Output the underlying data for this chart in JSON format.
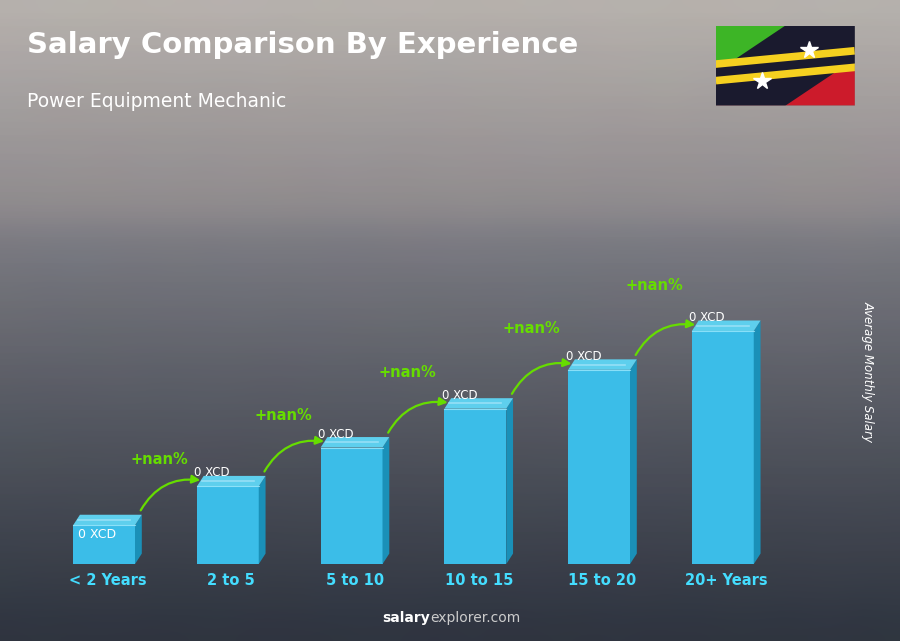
{
  "title": "Salary Comparison By Experience",
  "subtitle": "Power Equipment Mechanic",
  "categories": [
    "< 2 Years",
    "2 to 5",
    "5 to 10",
    "10 to 15",
    "15 to 20",
    "20+ Years"
  ],
  "bar_label": "0 XCD",
  "pct_label": "+nan%",
  "bar_color_front": "#3bbde8",
  "bar_color_light": "#7dd8f0",
  "bar_color_dark": "#1a90b8",
  "bar_color_top": "#5ecfed",
  "green_color": "#66dd00",
  "white_color": "#ffffff",
  "xlabel_color": "#44ddff",
  "watermark_bold": "salary",
  "watermark_normal": "explorer.com",
  "ylabel_text": "Average Monthly Salary",
  "bar_heights": [
    1,
    2,
    3,
    4,
    5,
    6
  ],
  "x_positions": [
    0,
    1,
    2,
    3,
    4,
    5
  ],
  "flag_colors": {
    "green": "#3db526",
    "red": "#cc1b2b",
    "black": "#1a1a2e",
    "yellow": "#f5d020"
  }
}
